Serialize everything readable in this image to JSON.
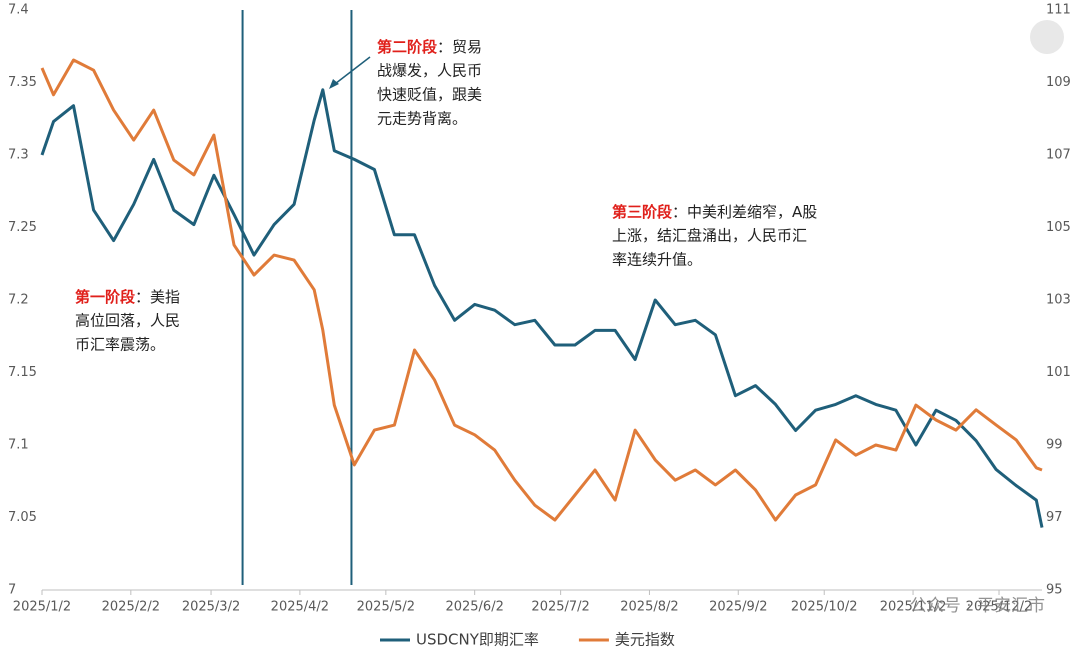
{
  "chart_data": {
    "type": "line",
    "x": [
      "2025/1/2",
      "2025/1/6",
      "2025/1/13",
      "2025/1/20",
      "2025/1/27",
      "2025/2/3",
      "2025/2/10",
      "2025/2/17",
      "2025/2/24",
      "2025/3/3",
      "2025/3/10",
      "2025/3/17",
      "2025/3/24",
      "2025/3/31",
      "2025/4/7",
      "2025/4/10",
      "2025/4/14",
      "2025/4/21",
      "2025/4/28",
      "2025/5/5",
      "2025/5/12",
      "2025/5/19",
      "2025/5/26",
      "2025/6/2",
      "2025/6/9",
      "2025/6/16",
      "2025/6/23",
      "2025/6/30",
      "2025/7/7",
      "2025/7/14",
      "2025/7/21",
      "2025/7/28",
      "2025/8/4",
      "2025/8/11",
      "2025/8/18",
      "2025/8/25",
      "2025/9/1",
      "2025/9/8",
      "2025/9/15",
      "2025/9/22",
      "2025/9/29",
      "2025/10/6",
      "2025/10/13",
      "2025/10/20",
      "2025/10/27",
      "2025/11/3",
      "2025/11/10",
      "2025/11/17",
      "2025/11/24",
      "2025/12/1",
      "2025/12/8",
      "2025/12/15",
      "2025/12/17"
    ],
    "series": [
      {
        "name": "USDCNY即期汇率",
        "color": "#1f5f7a",
        "values": [
          7.3,
          7.323,
          7.334,
          7.262,
          7.241,
          7.266,
          7.297,
          7.262,
          7.252,
          7.286,
          7.259,
          7.231,
          7.252,
          7.266,
          7.324,
          7.345,
          7.303,
          7.297,
          7.29,
          7.245,
          7.245,
          7.21,
          7.186,
          7.197,
          7.193,
          7.183,
          7.186,
          7.169,
          7.169,
          7.179,
          7.179,
          7.159,
          7.2,
          7.183,
          7.186,
          7.176,
          7.134,
          7.141,
          7.128,
          7.11,
          7.124,
          7.128,
          7.134,
          7.128,
          7.124,
          7.1,
          7.124,
          7.117,
          7.103,
          7.083,
          7.072,
          7.062,
          7.043
        ]
      },
      {
        "name": "美元指数",
        "color": "#e07b39",
        "axis": "y2",
        "values": [
          109.4,
          108.66,
          109.62,
          109.34,
          108.24,
          107.41,
          108.24,
          106.86,
          106.45,
          107.55,
          104.52,
          103.69,
          104.24,
          104.1,
          103.28,
          102.17,
          100.1,
          98.45,
          99.41,
          99.55,
          101.62,
          100.79,
          99.55,
          99.28,
          98.86,
          98.03,
          97.34,
          96.93,
          97.62,
          98.31,
          97.48,
          99.41,
          98.59,
          98.03,
          98.31,
          97.9,
          98.31,
          97.76,
          96.93,
          97.62,
          97.9,
          99.14,
          98.72,
          99.0,
          98.86,
          100.1,
          99.69,
          99.41,
          99.97,
          99.55,
          99.14,
          98.37,
          98.31
        ]
      }
    ],
    "xlim": [
      "2025/1/2",
      "2025/12/17"
    ],
    "xticks": [
      "2025/1/2",
      "2025/2/2",
      "2025/3/2",
      "2025/4/2",
      "2025/5/2",
      "2025/6/2",
      "2025/7/2",
      "2025/8/2",
      "2025/9/2",
      "2025/10/2",
      "2025/11/2",
      "2025/12/2"
    ],
    "ylim": [
      7,
      7.4
    ],
    "yticks": [
      7,
      7.05,
      7.1,
      7.15,
      7.2,
      7.25,
      7.3,
      7.35,
      7.4
    ],
    "y2lim": [
      95,
      111
    ],
    "y2ticks": [
      95,
      97,
      99,
      101,
      103,
      105,
      107,
      109,
      111
    ],
    "vlines": [
      "2025/3/13",
      "2025/4/20"
    ],
    "annotations": [
      {
        "label": "第一阶段",
        "lines": [
          "：美指",
          "高位回落，人民",
          "币汇率震荡。"
        ]
      },
      {
        "label": "第二阶段",
        "lines": [
          "：贸易",
          "战爆发，人民币",
          "快速贬值，跟美",
          "元走势背离。"
        ]
      },
      {
        "label": "第三阶段",
        "lines": [
          "：中美利差缩窄，A股",
          "上涨，结汇盘涌出，人民币汇",
          "率连续升值。"
        ]
      }
    ],
    "legend": "bottom",
    "watermark": "公众号 · 平安汇市"
  }
}
